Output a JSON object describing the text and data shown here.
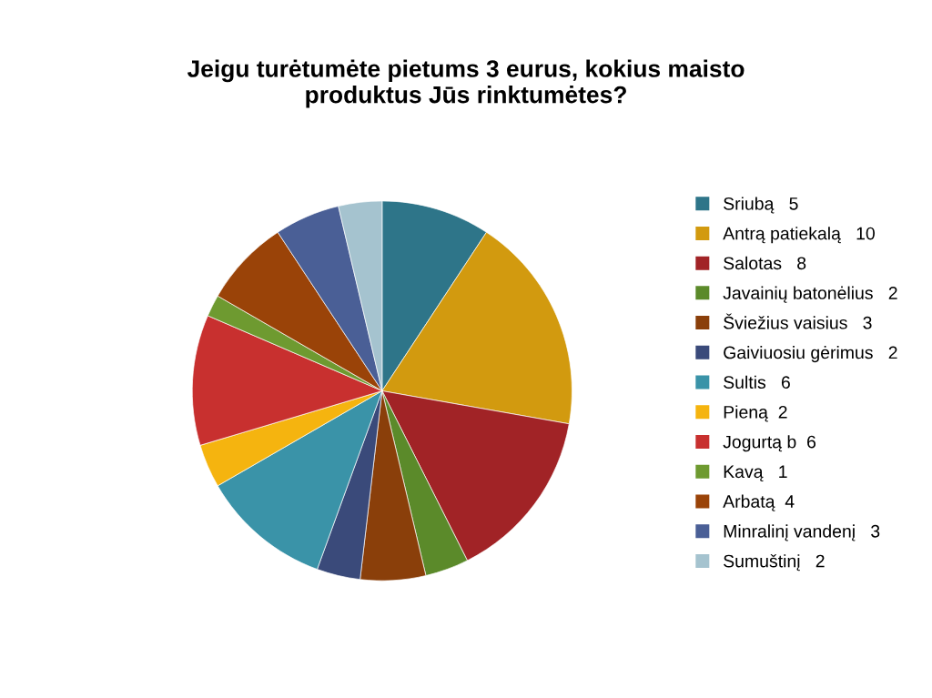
{
  "chart_data": {
    "type": "pie",
    "title": "Jeigu turėtumėte pietums 3 eurus, kokius maisto\nproduktus Jūs rinktumėtes?",
    "categories": [
      "Sriubą   5",
      "Antrą patiekalą   10",
      "Salotas   8",
      "Javainių batonėlius   2",
      "Šviežius vaisius   3",
      "Gaiviuosiu gėrimus   2",
      "Sultis   6",
      "Pieną  2",
      "Jogurtą b  6",
      "Kavą   1",
      "Arbatą  4",
      "Minralinį vandenį   3",
      "Sumuštinį   2"
    ],
    "values": [
      5,
      10,
      8,
      2,
      3,
      2,
      6,
      2,
      6,
      1,
      4,
      3,
      2
    ],
    "colors": [
      "#2e7589",
      "#d29a0f",
      "#a12326",
      "#5b8a2a",
      "#8a3f0a",
      "#3a4a7a",
      "#3a93a8",
      "#f5b40f",
      "#c8302f",
      "#6e9a30",
      "#9a4308",
      "#4a5f96",
      "#a5c3cf"
    ],
    "legend": "right"
  }
}
